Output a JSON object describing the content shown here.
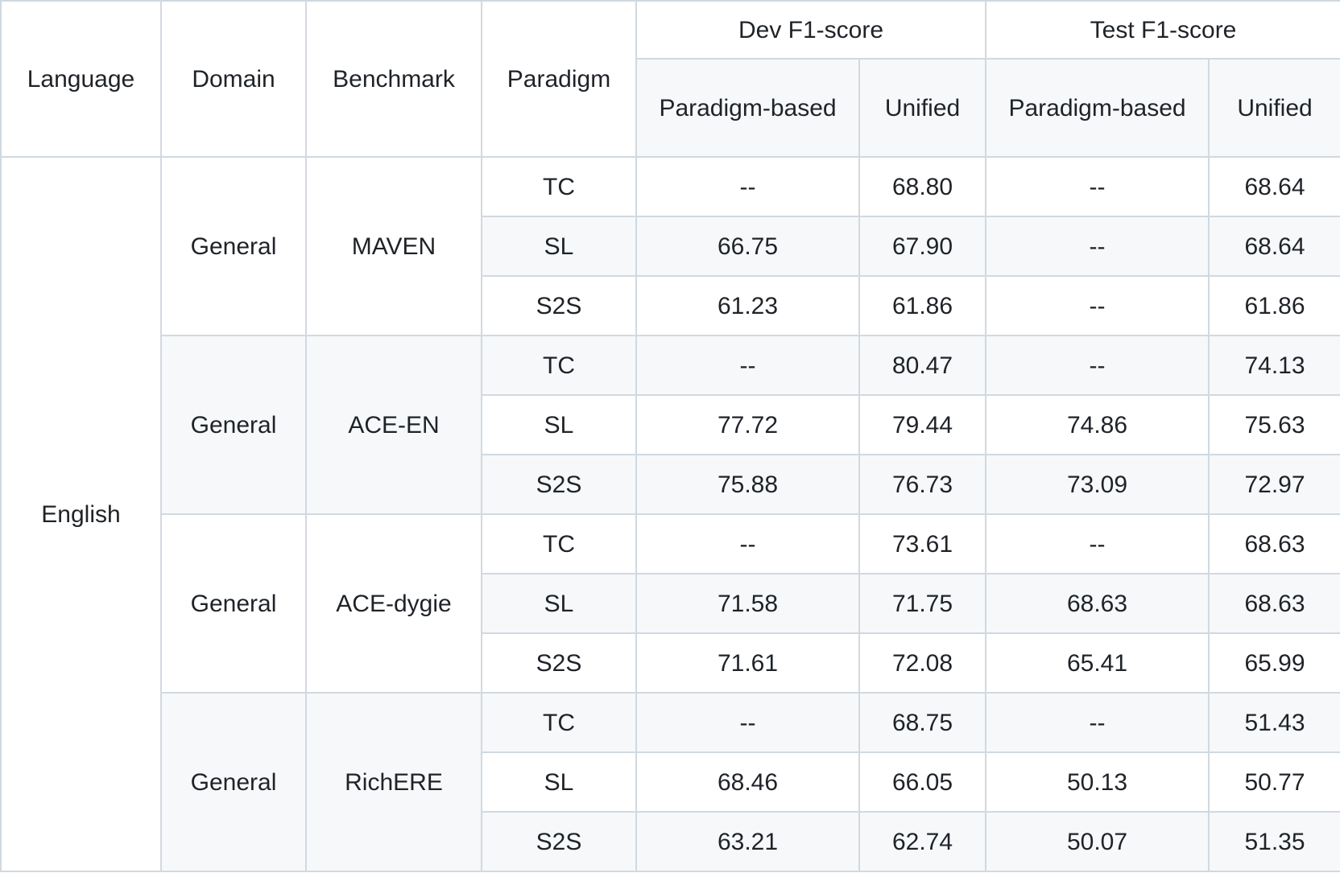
{
  "header": {
    "language": "Language",
    "domain": "Domain",
    "benchmark": "Benchmark",
    "paradigm": "Paradigm",
    "dev_group": "Dev F1-score",
    "test_group": "Test F1-score",
    "dev_paradigm_based": "Paradigm-based",
    "dev_unified": "Unified",
    "test_paradigm_based": "Paradigm-based",
    "test_unified": "Unified"
  },
  "language": "English",
  "groups": [
    {
      "domain": "General",
      "benchmark": "MAVEN",
      "rows": [
        {
          "paradigm": "TC",
          "dev_pb": "--",
          "dev_unified": "68.80",
          "test_pb": "--",
          "test_unified": "68.64"
        },
        {
          "paradigm": "SL",
          "dev_pb": "66.75",
          "dev_unified": "67.90",
          "test_pb": "--",
          "test_unified": "68.64"
        },
        {
          "paradigm": "S2S",
          "dev_pb": "61.23",
          "dev_unified": "61.86",
          "test_pb": "--",
          "test_unified": "61.86"
        }
      ]
    },
    {
      "domain": "General",
      "benchmark": "ACE-EN",
      "rows": [
        {
          "paradigm": "TC",
          "dev_pb": "--",
          "dev_unified": "80.47",
          "test_pb": "--",
          "test_unified": "74.13"
        },
        {
          "paradigm": "SL",
          "dev_pb": "77.72",
          "dev_unified": "79.44",
          "test_pb": "74.86",
          "test_unified": "75.63"
        },
        {
          "paradigm": "S2S",
          "dev_pb": "75.88",
          "dev_unified": "76.73",
          "test_pb": "73.09",
          "test_unified": "72.97"
        }
      ]
    },
    {
      "domain": "General",
      "benchmark": "ACE-dygie",
      "rows": [
        {
          "paradigm": "TC",
          "dev_pb": "--",
          "dev_unified": "73.61",
          "test_pb": "--",
          "test_unified": "68.63"
        },
        {
          "paradigm": "SL",
          "dev_pb": "71.58",
          "dev_unified": "71.75",
          "test_pb": "68.63",
          "test_unified": "68.63"
        },
        {
          "paradigm": "S2S",
          "dev_pb": "71.61",
          "dev_unified": "72.08",
          "test_pb": "65.41",
          "test_unified": "65.99"
        }
      ]
    },
    {
      "domain": "General",
      "benchmark": "RichERE",
      "rows": [
        {
          "paradigm": "TC",
          "dev_pb": "--",
          "dev_unified": "68.75",
          "test_pb": "--",
          "test_unified": "51.43"
        },
        {
          "paradigm": "SL",
          "dev_pb": "68.46",
          "dev_unified": "66.05",
          "test_pb": "50.13",
          "test_unified": "50.77"
        },
        {
          "paradigm": "S2S",
          "dev_pb": "63.21",
          "dev_unified": "62.74",
          "test_pb": "50.07",
          "test_unified": "51.35"
        }
      ]
    }
  ]
}
